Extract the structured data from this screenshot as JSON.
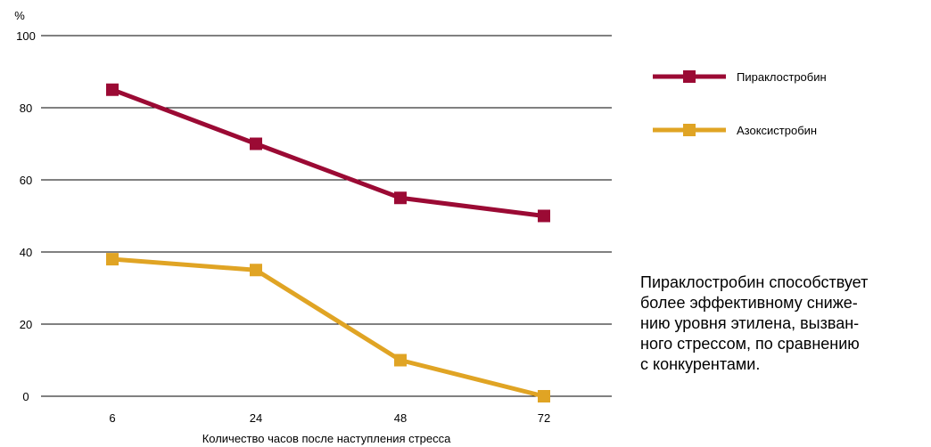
{
  "chart_data": {
    "type": "line",
    "ylabel": "%",
    "xlabel": "Количество часов после наступления стресса",
    "ylim": [
      0,
      100
    ],
    "yticks": [
      0,
      20,
      40,
      60,
      80,
      100
    ],
    "categories": [
      "6",
      "24",
      "48",
      "72"
    ],
    "grid": true,
    "legend_position": "right",
    "series": [
      {
        "name": "Пираклостробин",
        "color": "#9b0a34",
        "values": [
          85,
          70,
          55,
          50
        ]
      },
      {
        "name": "Азоксистробин",
        "color": "#e0a424",
        "values": [
          38,
          35,
          10,
          0
        ]
      }
    ]
  },
  "annotation": {
    "lines": [
      "Пираклостробин способствует",
      "более эффективному сниже-",
      "нию уровня этилена, вызван-",
      "ного стрессом, по сравнению",
      "с конкурентами."
    ]
  }
}
